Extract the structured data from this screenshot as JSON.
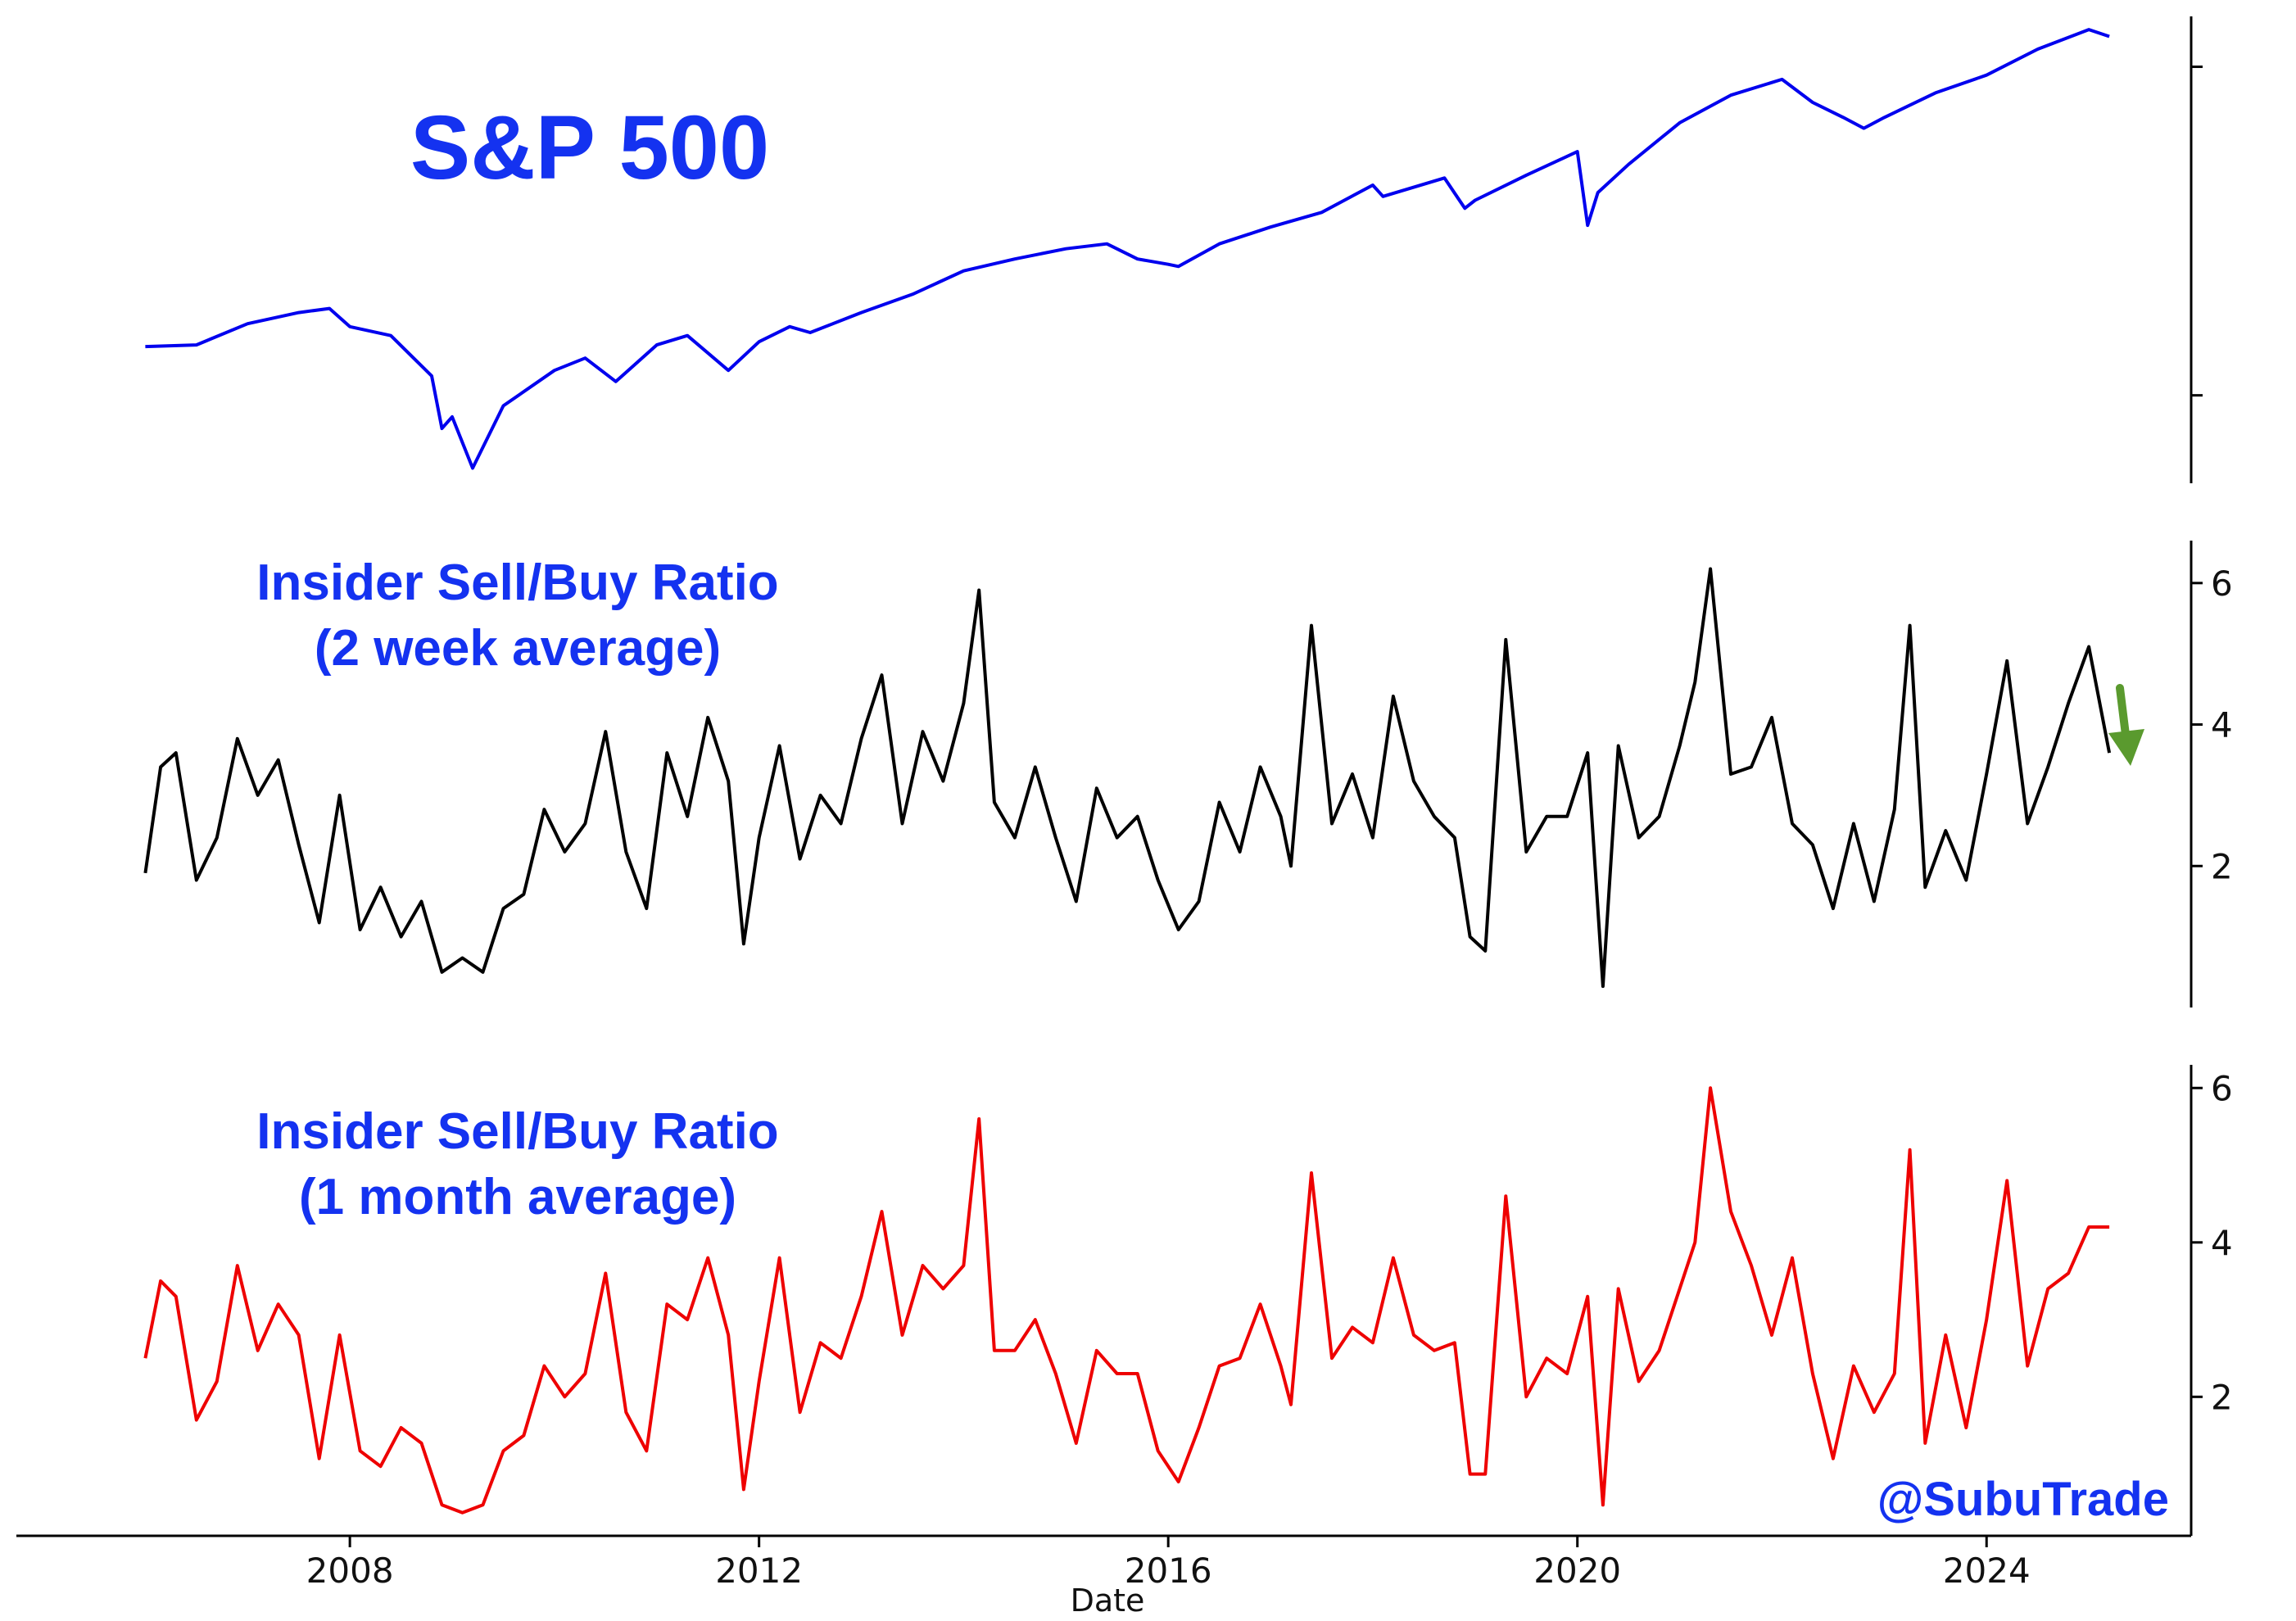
{
  "chart_data": [
    {
      "type": "line",
      "title": "S&P 500",
      "yscale": "log",
      "ylim": [
        650,
        6400
      ],
      "color": "#0000ee",
      "x": [
        2006.0,
        2006.5,
        2007.0,
        2007.5,
        2007.8,
        2008.0,
        2008.4,
        2008.8,
        2008.9,
        2009.0,
        2009.2,
        2009.5,
        2010.0,
        2010.3,
        2010.6,
        2011.0,
        2011.3,
        2011.7,
        2012.0,
        2012.3,
        2012.5,
        2013.0,
        2013.5,
        2014.0,
        2014.5,
        2015.0,
        2015.4,
        2015.7,
        2016.0,
        2016.1,
        2016.5,
        2017.0,
        2017.5,
        2018.0,
        2018.1,
        2018.7,
        2018.9,
        2019.0,
        2019.5,
        2020.0,
        2020.1,
        2020.2,
        2020.5,
        2021.0,
        2021.5,
        2022.0,
        2022.3,
        2022.6,
        2022.8,
        2023.0,
        2023.5,
        2024.0,
        2024.5,
        2025.0,
        2025.2
      ],
      "y": [
        1270,
        1280,
        1420,
        1500,
        1530,
        1400,
        1340,
        1100,
        850,
        900,
        700,
        950,
        1130,
        1200,
        1070,
        1280,
        1340,
        1130,
        1300,
        1400,
        1360,
        1500,
        1640,
        1840,
        1950,
        2050,
        2100,
        1950,
        1900,
        1880,
        2100,
        2280,
        2450,
        2800,
        2650,
        2900,
        2500,
        2600,
        2940,
        3300,
        2300,
        2700,
        3100,
        3800,
        4350,
        4700,
        4200,
        3900,
        3700,
        3900,
        4400,
        4800,
        5450,
        6000,
        5800
      ],
      "ytick_marks": [
        1000,
        5000
      ]
    },
    {
      "type": "line",
      "title": [
        "Insider Sell/Buy Ratio",
        "(2 week average)"
      ],
      "color": "#000000",
      "ylim": [
        0,
        6.6
      ],
      "yticks": [
        2,
        4,
        6
      ],
      "annotation": "green-down-arrow",
      "annotation_color": "#5a9a2e",
      "x": [
        2006.0,
        2006.15,
        2006.3,
        2006.5,
        2006.7,
        2006.9,
        2007.1,
        2007.3,
        2007.5,
        2007.7,
        2007.9,
        2008.1,
        2008.3,
        2008.5,
        2008.7,
        2008.9,
        2009.1,
        2009.3,
        2009.5,
        2009.7,
        2009.9,
        2010.1,
        2010.3,
        2010.5,
        2010.7,
        2010.9,
        2011.1,
        2011.3,
        2011.5,
        2011.7,
        2011.85,
        2012.0,
        2012.2,
        2012.4,
        2012.6,
        2012.8,
        2013.0,
        2013.2,
        2013.4,
        2013.6,
        2013.8,
        2014.0,
        2014.15,
        2014.3,
        2014.5,
        2014.7,
        2014.9,
        2015.1,
        2015.3,
        2015.5,
        2015.7,
        2015.9,
        2016.1,
        2016.3,
        2016.5,
        2016.7,
        2016.9,
        2017.1,
        2017.2,
        2017.4,
        2017.6,
        2017.8,
        2018.0,
        2018.2,
        2018.4,
        2018.6,
        2018.8,
        2018.95,
        2019.1,
        2019.3,
        2019.5,
        2019.7,
        2019.9,
        2020.1,
        2020.25,
        2020.4,
        2020.6,
        2020.8,
        2021.0,
        2021.15,
        2021.3,
        2021.5,
        2021.7,
        2021.9,
        2022.1,
        2022.3,
        2022.5,
        2022.7,
        2022.9,
        2023.1,
        2023.25,
        2023.4,
        2023.6,
        2023.8,
        2024.0,
        2024.2,
        2024.4,
        2024.6,
        2024.8,
        2025.0,
        2025.2
      ],
      "y": [
        1.9,
        3.4,
        3.6,
        1.8,
        2.4,
        3.8,
        3.0,
        3.5,
        2.3,
        1.2,
        3.0,
        1.1,
        1.7,
        1.0,
        1.5,
        0.5,
        0.7,
        0.5,
        1.4,
        1.6,
        2.8,
        2.2,
        2.6,
        3.9,
        2.2,
        1.4,
        3.6,
        2.7,
        4.1,
        3.2,
        0.9,
        2.4,
        3.7,
        2.1,
        3.0,
        2.6,
        3.8,
        4.7,
        2.6,
        3.9,
        3.2,
        4.3,
        5.9,
        2.9,
        2.4,
        3.4,
        2.4,
        1.5,
        3.1,
        2.4,
        2.7,
        1.8,
        1.1,
        1.5,
        2.9,
        2.2,
        3.4,
        2.7,
        2.0,
        5.4,
        2.6,
        3.3,
        2.4,
        4.4,
        3.2,
        2.7,
        2.4,
        1.0,
        0.8,
        5.2,
        2.2,
        2.7,
        2.7,
        3.6,
        0.3,
        3.7,
        2.4,
        2.7,
        3.7,
        4.6,
        6.2,
        3.3,
        3.4,
        4.1,
        2.6,
        2.3,
        1.4,
        2.6,
        1.5,
        2.8,
        5.4,
        1.7,
        2.5,
        1.8,
        3.3,
        4.9,
        2.6,
        3.4,
        4.3,
        5.1,
        3.6
      ],
      "last_value": 3.6
    },
    {
      "type": "line",
      "title": [
        "Insider Sell/Buy Ratio",
        "(1 month average)"
      ],
      "color": "#ee0000",
      "ylim": [
        0.2,
        6.3
      ],
      "yticks": [
        2,
        4,
        6
      ],
      "xlabel": "Date",
      "xlim": [
        2004.9,
        2026.0
      ],
      "xticks": [
        2008,
        2012,
        2016,
        2020,
        2024
      ],
      "x": [
        2006.0,
        2006.15,
        2006.3,
        2006.5,
        2006.7,
        2006.9,
        2007.1,
        2007.3,
        2007.5,
        2007.7,
        2007.9,
        2008.1,
        2008.3,
        2008.5,
        2008.7,
        2008.9,
        2009.1,
        2009.3,
        2009.5,
        2009.7,
        2009.9,
        2010.1,
        2010.3,
        2010.5,
        2010.7,
        2010.9,
        2011.1,
        2011.3,
        2011.5,
        2011.7,
        2011.85,
        2012.0,
        2012.2,
        2012.4,
        2012.6,
        2012.8,
        2013.0,
        2013.2,
        2013.4,
        2013.6,
        2013.8,
        2014.0,
        2014.15,
        2014.3,
        2014.5,
        2014.7,
        2014.9,
        2015.1,
        2015.3,
        2015.5,
        2015.7,
        2015.9,
        2016.1,
        2016.3,
        2016.5,
        2016.7,
        2016.9,
        2017.1,
        2017.2,
        2017.4,
        2017.6,
        2017.8,
        2018.0,
        2018.2,
        2018.4,
        2018.6,
        2018.8,
        2018.95,
        2019.1,
        2019.3,
        2019.5,
        2019.7,
        2019.9,
        2020.1,
        2020.25,
        2020.4,
        2020.6,
        2020.8,
        2021.0,
        2021.15,
        2021.3,
        2021.5,
        2021.7,
        2021.9,
        2022.1,
        2022.3,
        2022.5,
        2022.7,
        2022.9,
        2023.1,
        2023.25,
        2023.4,
        2023.6,
        2023.8,
        2024.0,
        2024.2,
        2024.4,
        2024.6,
        2024.8,
        2025.0,
        2025.2
      ],
      "y": [
        2.5,
        3.5,
        3.3,
        1.7,
        2.2,
        3.7,
        2.6,
        3.2,
        2.8,
        1.2,
        2.8,
        1.3,
        1.1,
        1.6,
        1.4,
        0.6,
        0.5,
        0.6,
        1.3,
        1.5,
        2.4,
        2.0,
        2.3,
        3.6,
        1.8,
        1.3,
        3.2,
        3.0,
        3.8,
        2.8,
        0.8,
        2.2,
        3.8,
        1.8,
        2.7,
        2.5,
        3.3,
        4.4,
        2.8,
        3.7,
        3.4,
        3.7,
        5.6,
        2.6,
        2.6,
        3.0,
        2.3,
        1.4,
        2.6,
        2.3,
        2.3,
        1.3,
        0.9,
        1.6,
        2.4,
        2.5,
        3.2,
        2.4,
        1.9,
        4.9,
        2.5,
        2.9,
        2.7,
        3.8,
        2.8,
        2.6,
        2.7,
        1.0,
        1.0,
        4.6,
        2.0,
        2.5,
        2.3,
        3.3,
        0.6,
        3.4,
        2.2,
        2.6,
        3.4,
        4.0,
        6.0,
        4.4,
        3.7,
        2.8,
        3.8,
        2.3,
        1.2,
        2.4,
        1.8,
        2.3,
        5.2,
        1.4,
        2.8,
        1.6,
        3.0,
        4.8,
        2.4,
        3.4,
        3.6,
        4.2,
        4.2
      ],
      "last_value": 4.2
    }
  ],
  "watermark": "@SubuTrade",
  "colors": {
    "title": "#1432f0",
    "axis": "#000000"
  }
}
